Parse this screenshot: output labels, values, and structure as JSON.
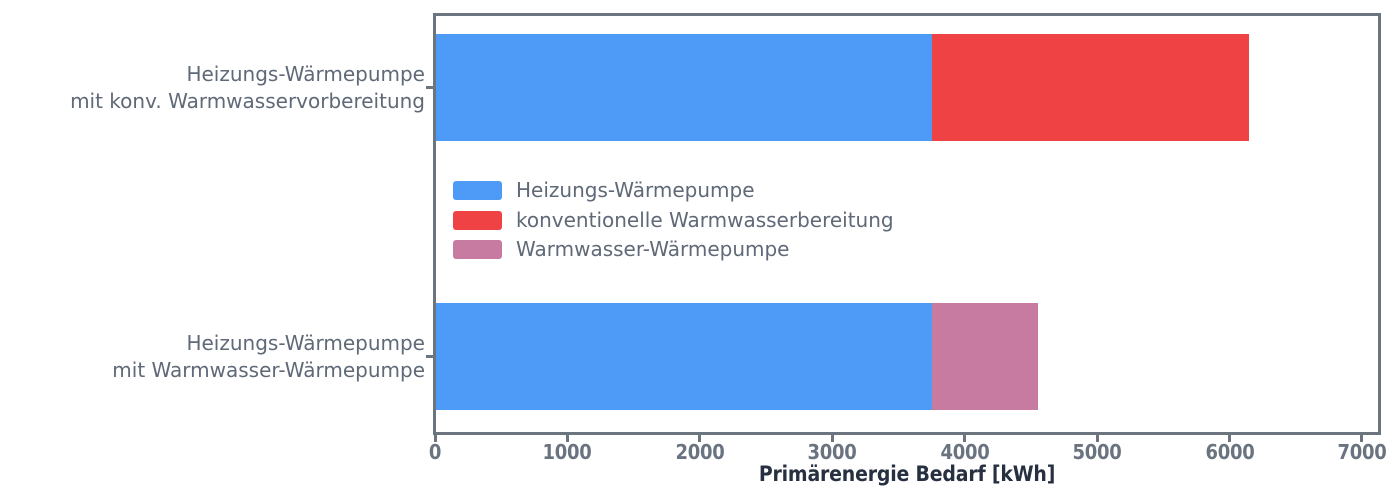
{
  "chart_data": {
    "type": "bar",
    "orientation": "horizontal",
    "stacked": true,
    "title": "",
    "xlabel": "Primärenergie Bedarf [kWh]",
    "ylabel": "",
    "categories": [
      "Heizungs-Wärmepumpe\nmit konv. Warmwasservorbereitung",
      "Heizungs-Wärmepumpe\nmit Warmwasser-Wärmepumpe"
    ],
    "series": [
      {
        "name": "Heizungs-Wärmepumpe",
        "color": "#4D9AF7",
        "values": [
          3750,
          3750
        ]
      },
      {
        "name": "konventionelle Warmwasserbereitung",
        "color": "#EF4245",
        "values": [
          2400,
          0
        ]
      },
      {
        "name": "Warmwasser-Wärmepumpe",
        "color": "#C87BA0",
        "values": [
          0,
          800
        ]
      }
    ],
    "totals": [
      6150,
      4550
    ],
    "xticks": [
      0,
      1000,
      2000,
      3000,
      4000,
      5000,
      6000,
      7000
    ],
    "xlim": [
      0,
      7130
    ],
    "grid": false,
    "legend_position": "upper left inside plot",
    "colors": {
      "axis_spine": "#6C7480",
      "tick_label": "#6A7380",
      "category_label": "#5F6977",
      "legend_text": "#5F6977",
      "xlabel_text": "#273040",
      "background": "#ffffff"
    }
  }
}
